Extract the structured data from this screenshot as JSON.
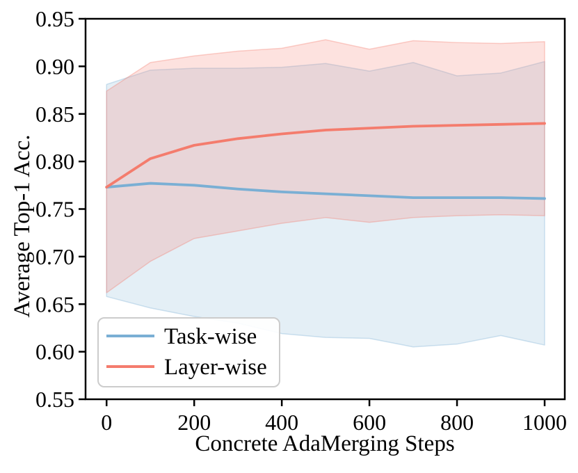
{
  "chart_data": {
    "type": "line",
    "title": "",
    "xlabel": "Concrete AdaMerging Steps",
    "ylabel": "Average Top-1 Acc.",
    "x": [
      0,
      100,
      200,
      300,
      400,
      500,
      600,
      700,
      800,
      900,
      1000
    ],
    "xlim": [
      -48,
      1046
    ],
    "ylim": [
      0.55,
      0.95
    ],
    "xticks": [
      0,
      200,
      400,
      600,
      800,
      1000
    ],
    "yticks": [
      0.55,
      0.6,
      0.65,
      0.7,
      0.75,
      0.8,
      0.85,
      0.9,
      0.95
    ],
    "grid": false,
    "legend_position": "lower left",
    "series": [
      {
        "name": "Task-wise",
        "color": "#7aafd4",
        "fill_alpha": 0.2,
        "values": [
          0.773,
          0.777,
          0.775,
          0.771,
          0.768,
          0.766,
          0.764,
          0.762,
          0.762,
          0.762,
          0.761
        ],
        "band_upper": [
          0.881,
          0.896,
          0.898,
          0.898,
          0.899,
          0.903,
          0.895,
          0.904,
          0.89,
          0.893,
          0.905
        ],
        "band_lower": [
          0.658,
          0.646,
          0.637,
          0.63,
          0.619,
          0.615,
          0.614,
          0.605,
          0.608,
          0.617,
          0.607
        ]
      },
      {
        "name": "Layer-wise",
        "color": "#f47c6d",
        "fill_alpha": 0.22,
        "values": [
          0.773,
          0.803,
          0.817,
          0.824,
          0.829,
          0.833,
          0.835,
          0.837,
          0.838,
          0.839,
          0.84
        ],
        "band_upper": [
          0.874,
          0.904,
          0.911,
          0.916,
          0.919,
          0.928,
          0.918,
          0.927,
          0.925,
          0.924,
          0.926
        ],
        "band_lower": [
          0.662,
          0.695,
          0.719,
          0.727,
          0.735,
          0.741,
          0.736,
          0.741,
          0.743,
          0.744,
          0.743
        ]
      }
    ]
  }
}
